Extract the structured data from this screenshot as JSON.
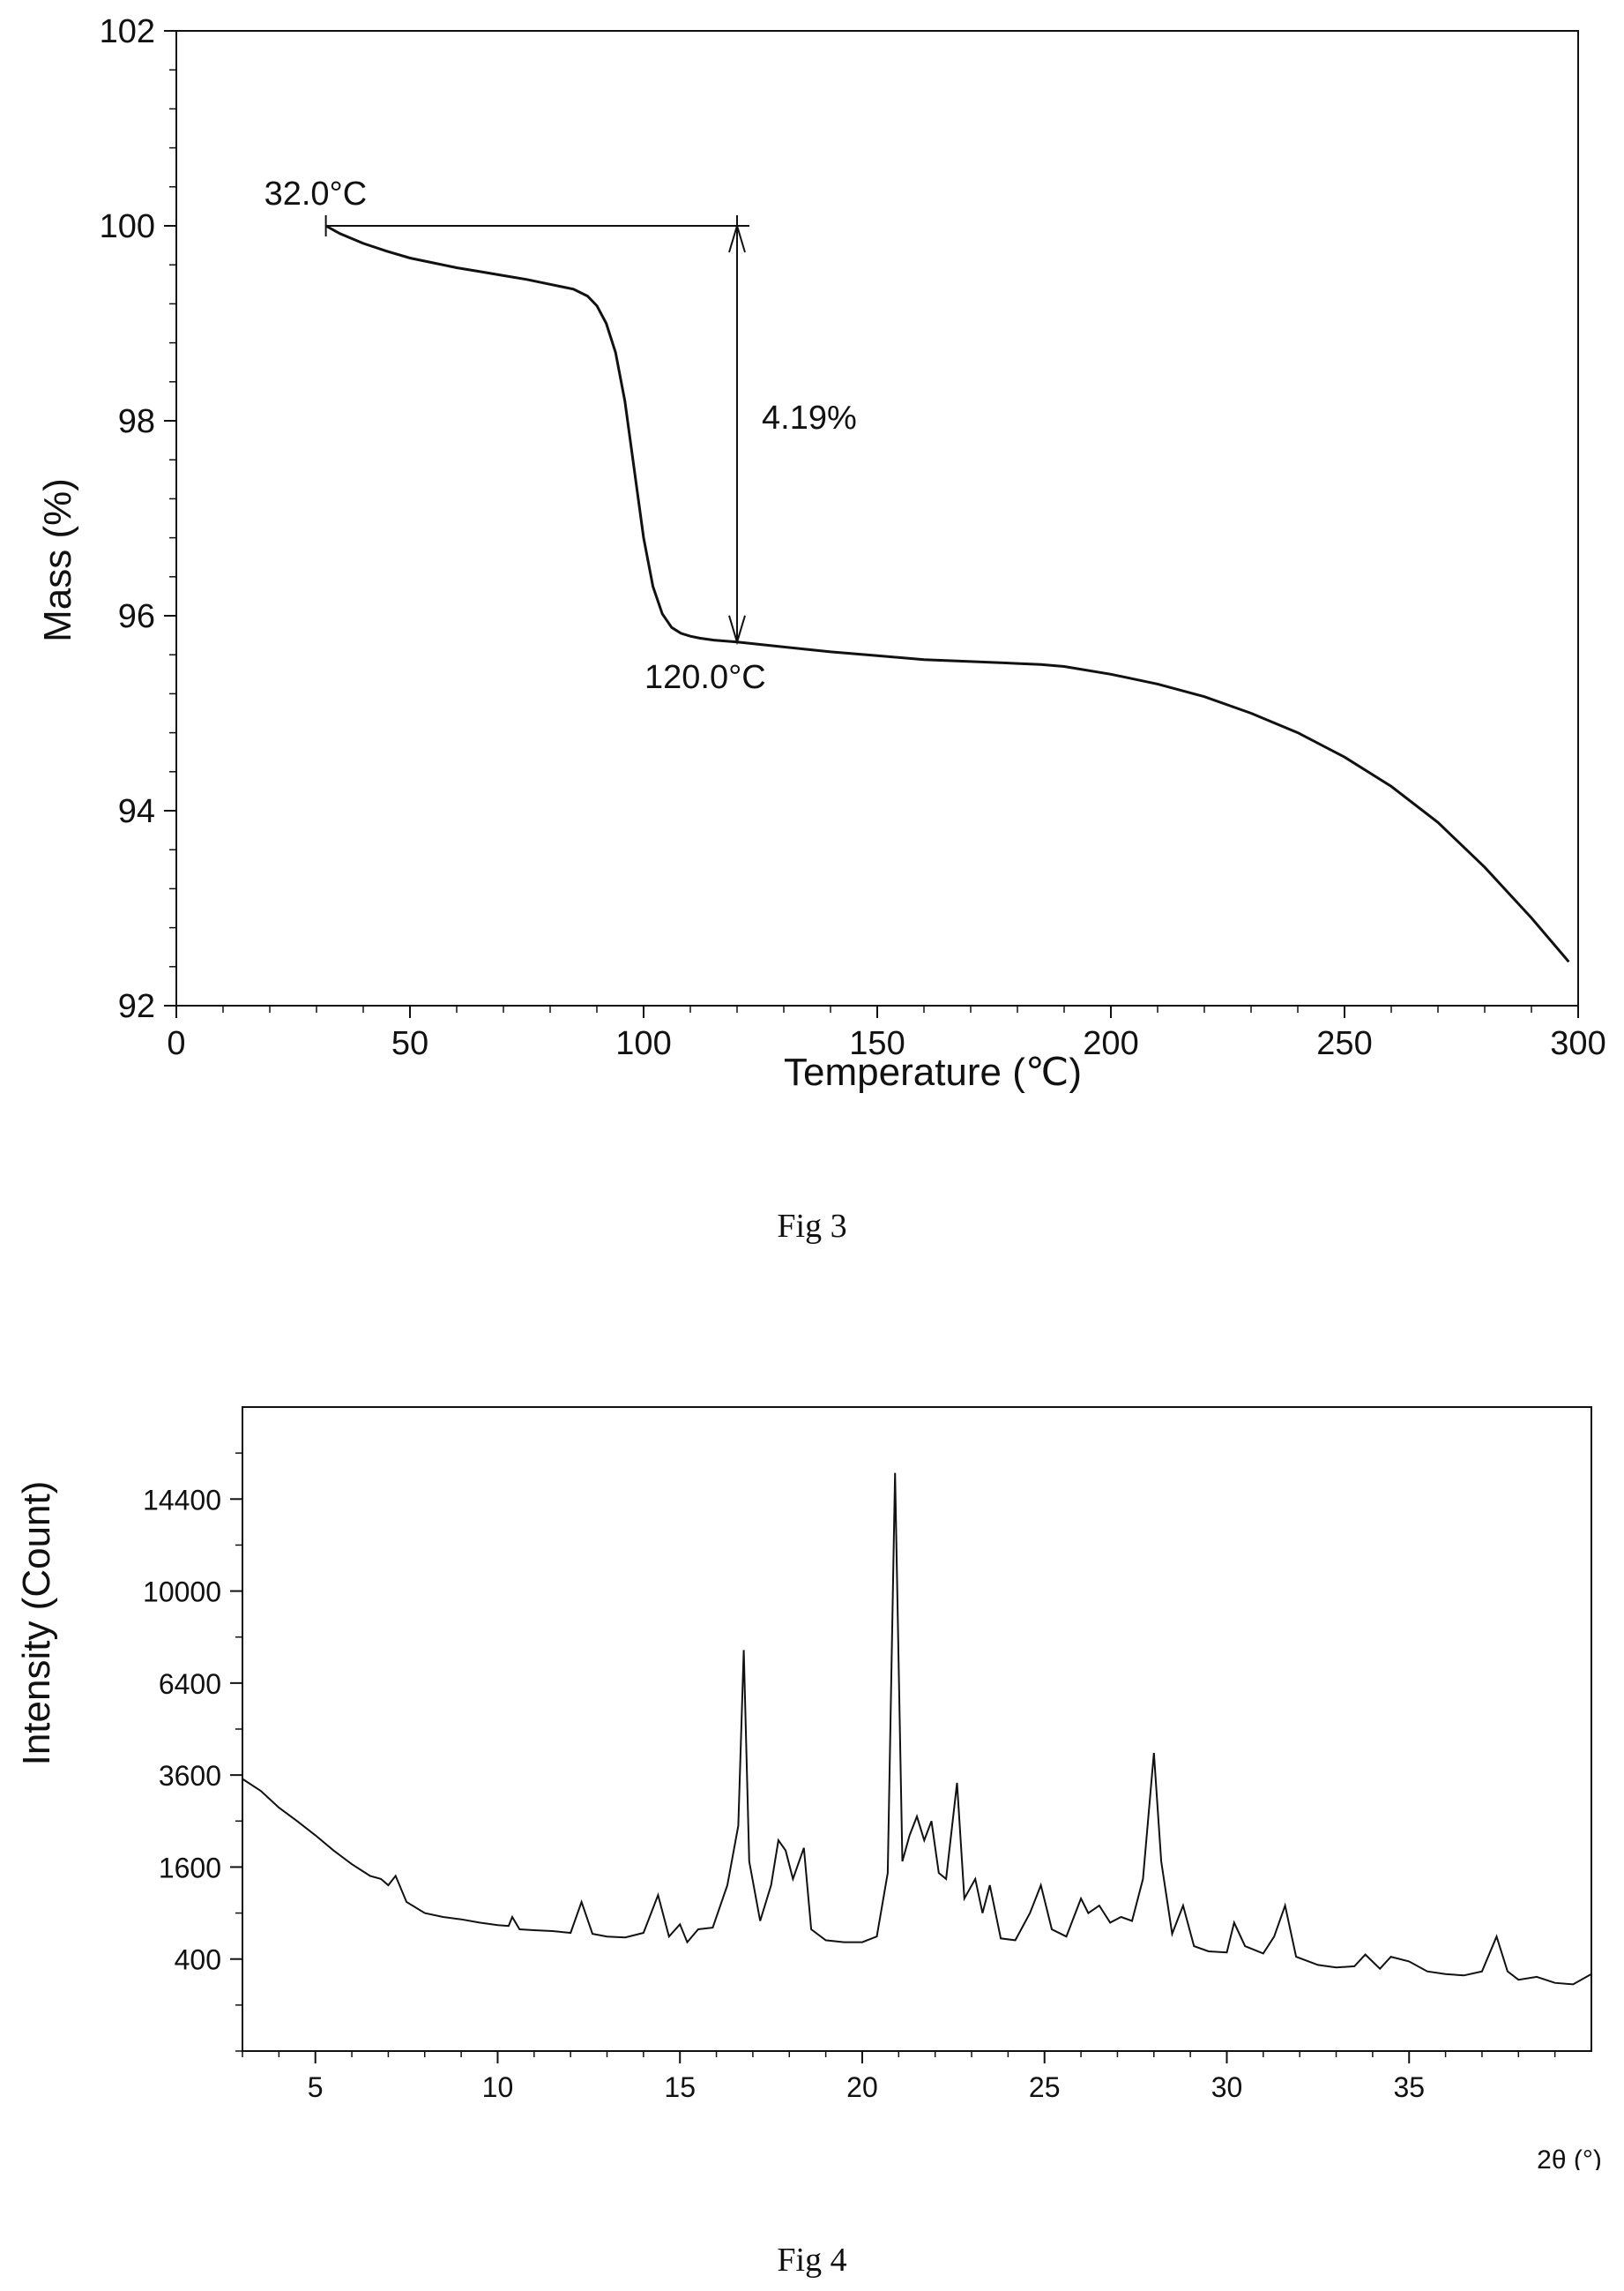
{
  "fig3": {
    "caption": "Fig 3",
    "chart_data": {
      "type": "line",
      "xlabel": "Temperature (℃)",
      "ylabel": "Mass (%)",
      "xlim": [
        0,
        300
      ],
      "ylim": [
        92,
        102
      ],
      "xticks": [
        "0",
        "50",
        "100",
        "150",
        "200",
        "250",
        "300"
      ],
      "yticks": [
        "92",
        "94",
        "96",
        "98",
        "100",
        "102"
      ],
      "grid": false,
      "series": [
        {
          "x": [
            32,
            35,
            40,
            45,
            50,
            55,
            60,
            65,
            70,
            75,
            80,
            85,
            88,
            90,
            92,
            94,
            96,
            98,
            100,
            102,
            104,
            106,
            108,
            110,
            112,
            115,
            120,
            130,
            140,
            150,
            160,
            170,
            180,
            185,
            190,
            200,
            210,
            220,
            230,
            240,
            250,
            260,
            270,
            280,
            290,
            298
          ],
          "y": [
            100.0,
            99.92,
            99.82,
            99.74,
            99.67,
            99.62,
            99.57,
            99.53,
            99.49,
            99.45,
            99.4,
            99.35,
            99.28,
            99.18,
            99.0,
            98.7,
            98.2,
            97.5,
            96.8,
            96.3,
            96.02,
            95.88,
            95.82,
            95.79,
            95.77,
            95.75,
            95.73,
            95.68,
            95.63,
            95.59,
            95.55,
            95.53,
            95.51,
            95.5,
            95.48,
            95.4,
            95.3,
            95.17,
            95.0,
            94.8,
            94.55,
            94.25,
            93.88,
            93.42,
            92.9,
            92.45
          ]
        }
      ],
      "annotations": {
        "start_label": "32.0°C",
        "end_label": "120.0°C",
        "loss_label": "4.19%",
        "start_x": 32,
        "end_x": 120,
        "top_y": 100.0,
        "bottom_y": 95.73
      }
    }
  },
  "fig4": {
    "caption": "Fig 4",
    "chart_data": {
      "type": "line",
      "xlabel": "2θ (°)",
      "ylabel": "Intensity (Count)",
      "xlim": [
        3,
        40
      ],
      "y_scale": "sqrt",
      "ylim": [
        0,
        19600
      ],
      "xticks": [
        "5",
        "10",
        "15",
        "20",
        "25",
        "30",
        "35"
      ],
      "yticks": [
        "400",
        "1600",
        "3600",
        "6400",
        "10000",
        "14400"
      ],
      "grid": false,
      "series": [
        {
          "x": [
            3.0,
            3.5,
            4.0,
            4.5,
            5.0,
            5.5,
            6.0,
            6.5,
            6.8,
            7.0,
            7.2,
            7.5,
            8.0,
            8.5,
            9.0,
            9.5,
            10.0,
            10.3,
            10.4,
            10.6,
            11.0,
            11.5,
            12.0,
            12.3,
            12.6,
            13.0,
            13.5,
            14.0,
            14.4,
            14.7,
            15.0,
            15.2,
            15.5,
            15.9,
            16.3,
            16.6,
            16.75,
            16.9,
            17.2,
            17.5,
            17.7,
            17.9,
            18.1,
            18.4,
            18.6,
            19.0,
            19.5,
            20.0,
            20.4,
            20.7,
            20.9,
            21.1,
            21.3,
            21.5,
            21.7,
            21.9,
            22.1,
            22.3,
            22.6,
            22.8,
            23.1,
            23.3,
            23.5,
            23.8,
            24.2,
            24.6,
            24.9,
            25.2,
            25.6,
            26.0,
            26.2,
            26.5,
            26.8,
            27.1,
            27.4,
            27.7,
            28.0,
            28.2,
            28.5,
            28.8,
            29.1,
            29.5,
            30.0,
            30.2,
            30.5,
            31.0,
            31.3,
            31.6,
            31.9,
            32.5,
            33.0,
            33.5,
            33.8,
            34.2,
            34.5,
            35.0,
            35.5,
            36.0,
            36.5,
            37.0,
            37.4,
            37.7,
            38.0,
            38.5,
            39.0,
            39.5,
            40.0
          ],
          "y": [
            3500,
            3200,
            2800,
            2500,
            2200,
            1900,
            1650,
            1450,
            1400,
            1300,
            1450,
            1050,
            900,
            850,
            820,
            780,
            750,
            740,
            850,
            700,
            690,
            680,
            660,
            1050,
            650,
            620,
            610,
            660,
            1150,
            620,
            760,
            560,
            700,
            720,
            1300,
            2400,
            7600,
            1700,
            800,
            1300,
            2100,
            1900,
            1400,
            1950,
            700,
            580,
            560,
            560,
            620,
            1500,
            15800,
            1700,
            2200,
            2600,
            2100,
            2500,
            1500,
            1400,
            3400,
            1100,
            1400,
            900,
            1300,
            600,
            580,
            900,
            1300,
            700,
            620,
            1100,
            900,
            1000,
            780,
            850,
            800,
            1400,
            4200,
            1700,
            650,
            1000,
            520,
            470,
            460,
            780,
            520,
            450,
            620,
            1000,
            420,
            350,
            330,
            340,
            440,
            320,
            420,
            380,
            300,
            280,
            270,
            300,
            620,
            300,
            240,
            260,
            220,
            210,
            280
          ]
        }
      ]
    }
  }
}
